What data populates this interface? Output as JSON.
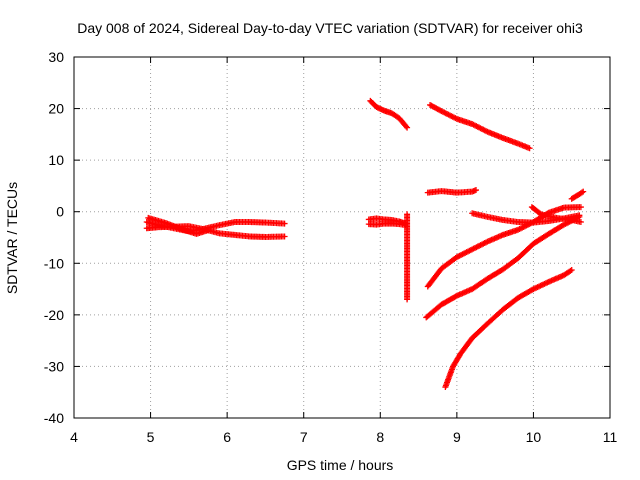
{
  "chart_data": {
    "type": "scatter",
    "title": "Day 008 of 2024, Sidereal Day-to-day VTEC variation (SDTVAR) for receiver ohi3",
    "xlabel": "GPS time / hours",
    "ylabel": "SDTVAR / TECUs",
    "xlim": [
      4,
      11
    ],
    "ylim": [
      -40,
      30
    ],
    "xticks": [
      "4",
      "5",
      "6",
      "7",
      "8",
      "9",
      "10",
      "11"
    ],
    "yticks": [
      "-40",
      "-30",
      "-20",
      "-10",
      "0",
      "10",
      "20",
      "30"
    ],
    "grid": true,
    "marker": "plus",
    "color": "#ff0000",
    "series": [
      {
        "x": [
          4.95,
          5.1,
          5.3,
          5.5,
          5.7,
          5.9,
          6.1,
          6.3,
          6.5,
          6.75
        ],
        "y": [
          -2.0,
          -2.6,
          -3.2,
          -3.8,
          -3.3,
          -2.6,
          -2.0,
          -2.0,
          -2.1,
          -2.3
        ]
      },
      {
        "x": [
          4.95,
          5.1,
          5.3,
          5.5,
          5.7,
          5.9,
          6.1,
          6.3,
          6.5,
          6.75
        ],
        "y": [
          -3.2,
          -3.0,
          -2.9,
          -2.8,
          -3.4,
          -4.2,
          -4.5,
          -4.8,
          -4.9,
          -4.8
        ]
      },
      {
        "x": [
          4.97,
          5.2,
          5.45,
          5.6,
          5.75
        ],
        "y": [
          -1.2,
          -2.2,
          -3.6,
          -4.3,
          -3.6
        ]
      },
      {
        "x": [
          7.87,
          7.95,
          8.05,
          8.15,
          8.25,
          8.35
        ],
        "y": [
          21.5,
          20.3,
          19.6,
          19.1,
          18.1,
          16.3
        ]
      },
      {
        "x": [
          7.85,
          7.95,
          8.05,
          8.15,
          8.25,
          8.33
        ],
        "y": [
          -1.5,
          -1.3,
          -1.5,
          -1.6,
          -1.9,
          -2.3
        ]
      },
      {
        "x": [
          7.85,
          7.95,
          8.05,
          8.15,
          8.25,
          8.33
        ],
        "y": [
          -2.4,
          -2.5,
          -2.3,
          -2.3,
          -2.4,
          -2.6
        ]
      },
      {
        "x": [
          8.35,
          8.35,
          8.35
        ],
        "y": [
          -0.5,
          -9.5,
          -17.0
        ]
      },
      {
        "x": [
          8.65,
          8.8,
          9.0,
          9.2,
          9.4,
          9.6,
          9.8,
          9.95
        ],
        "y": [
          20.7,
          19.5,
          18.0,
          17.0,
          15.5,
          14.3,
          13.2,
          12.3
        ]
      },
      {
        "x": [
          8.62,
          8.8,
          9.0,
          9.2,
          9.25
        ],
        "y": [
          3.7,
          4.0,
          3.7,
          3.9,
          4.2
        ]
      },
      {
        "x": [
          9.2,
          9.4,
          9.6,
          9.8,
          10.0,
          10.2,
          10.4,
          10.6
        ],
        "y": [
          -0.3,
          -1.0,
          -1.6,
          -2.0,
          -2.1,
          -1.8,
          -1.3,
          -0.7
        ]
      },
      {
        "x": [
          9.98,
          10.1,
          10.3,
          10.5,
          10.62
        ],
        "y": [
          0.9,
          -0.5,
          -1.2,
          -1.6,
          -2.0
        ]
      },
      {
        "x": [
          10.5,
          10.6,
          10.65
        ],
        "y": [
          2.5,
          3.4,
          3.9
        ]
      },
      {
        "x": [
          8.62,
          8.8,
          9.0,
          9.2,
          9.4,
          9.6,
          9.8,
          10.0,
          10.2,
          10.4,
          10.62
        ],
        "y": [
          -14.5,
          -11.0,
          -8.8,
          -7.3,
          -5.8,
          -4.5,
          -3.5,
          -2.0,
          -0.2,
          0.8,
          0.9
        ]
      },
      {
        "x": [
          8.6,
          8.8,
          9.0,
          9.2,
          9.4,
          9.6,
          9.8,
          10.0,
          10.2,
          10.4,
          10.6
        ],
        "y": [
          -20.5,
          -18.0,
          -16.3,
          -15.0,
          -13.0,
          -11.2,
          -9.0,
          -6.2,
          -4.3,
          -2.5,
          -1.0
        ]
      },
      {
        "x": [
          8.85,
          8.95,
          9.05,
          9.2,
          9.4,
          9.6,
          9.8,
          10.0,
          10.2,
          10.4,
          10.5
        ],
        "y": [
          -34.0,
          -30.0,
          -27.5,
          -24.5,
          -21.7,
          -19.0,
          -16.7,
          -15.0,
          -13.6,
          -12.3,
          -11.3
        ]
      }
    ]
  }
}
